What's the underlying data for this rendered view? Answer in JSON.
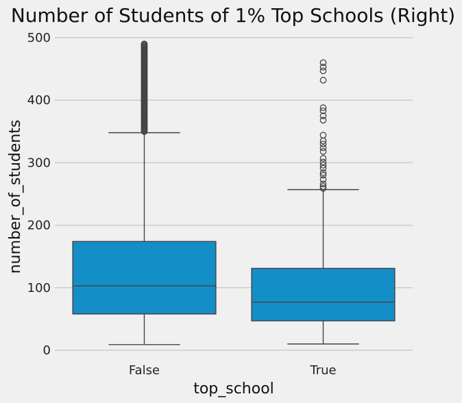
{
  "chart_data": {
    "type": "box",
    "title": "Number of Students of 1% Top Schools (Right)",
    "xlabel": "top_school",
    "ylabel": "number_of_students",
    "categories": [
      "False",
      "True"
    ],
    "ylim": [
      -10,
      512
    ],
    "yticks": [
      0,
      100,
      200,
      300,
      400,
      500
    ],
    "grid": true,
    "box_color": "#148ec6",
    "line_color": "#444444",
    "boxes": [
      {
        "category": "False",
        "whisker_low": 9,
        "q1": 58,
        "median": 103,
        "q3": 174,
        "whisker_high": 348,
        "outliers": [
          350,
          355,
          360,
          365,
          370,
          375,
          380,
          385,
          390,
          395,
          400,
          405,
          410,
          415,
          420,
          425,
          430,
          435,
          440,
          445,
          450,
          455,
          460,
          465,
          470,
          475,
          480,
          485,
          490
        ]
      },
      {
        "category": "True",
        "whisker_low": 10,
        "q1": 47,
        "median": 77,
        "q3": 131,
        "whisker_high": 257,
        "outliers": [
          259,
          262,
          266,
          273,
          280,
          284,
          291,
          296,
          301,
          307,
          318,
          324,
          330,
          335,
          344,
          368,
          375,
          383,
          388,
          432,
          447,
          453,
          460
        ]
      }
    ]
  }
}
